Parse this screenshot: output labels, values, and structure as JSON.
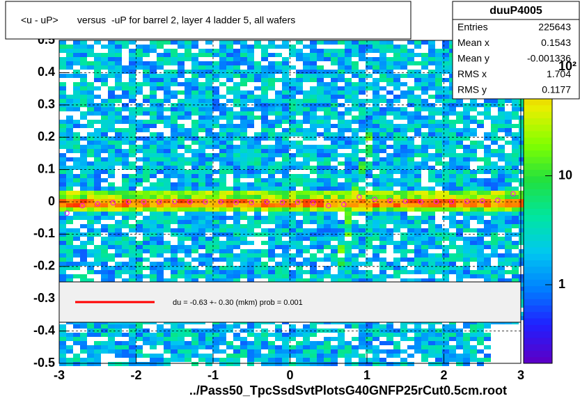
{
  "chart_data": {
    "type": "heatmap",
    "title": "<u - uP>       versus  -uP for barrel 2, layer 4 ladder 5, all wafers",
    "x_label": "../Pass50_TpcSsdSvtPlotsG40GNFP25rCut0.5cm.root",
    "xlim": [
      -3,
      3
    ],
    "xticks": [
      -3,
      -2,
      -1,
      0,
      1,
      2,
      3
    ],
    "ylim": [
      -0.5,
      0.5
    ],
    "yticks": [
      -0.5,
      -0.4,
      -0.3,
      -0.2,
      -0.1,
      0,
      0.1,
      0.2,
      0.3,
      0.4,
      0.5
    ],
    "grid": true,
    "zlog": true,
    "zlim": [
      0.19,
      175
    ],
    "zticks": [
      1,
      10,
      {
        "value": 100,
        "label": "10²"
      }
    ],
    "profile": {
      "color": "#ff00ff",
      "x": [
        -2.9,
        -2.7,
        -2.5,
        -2.3,
        -2.1,
        -1.9,
        -1.7,
        -1.5,
        -1.3,
        -1.1,
        -0.9,
        -0.7,
        -0.5,
        -0.3,
        -0.1,
        0.1,
        0.3,
        0.5,
        0.7,
        0.9,
        1.1,
        1.3,
        1.5,
        1.7,
        1.9,
        2.1,
        2.3,
        2.5,
        2.7,
        2.9
      ],
      "values": [
        -0.035,
        -0.012,
        -0.006,
        -0.003,
        0,
        0,
        0,
        0.001,
        0,
        0,
        0,
        -0.002,
        -0.002,
        0,
        -0.002,
        -0.001,
        -0.003,
        -0.012,
        -0.008,
        0.015,
        0.008,
        0.004,
        0.002,
        0,
        0.001,
        0.001,
        0.002,
        0.003,
        0.005,
        0.025
      ]
    },
    "fit": {
      "color": "#ff0000",
      "label": "du =   -0.63 +-  0.30 (mkm) prob = 0.001"
    },
    "stats": {
      "title": "duuP4005",
      "rows": [
        {
          "label": "Entries",
          "value": "225643"
        },
        {
          "label": "Mean x",
          "value": "0.1543"
        },
        {
          "label": "Mean y",
          "value": "-0.001336"
        },
        {
          "label": "RMS x",
          "value": "1.704"
        },
        {
          "label": "RMS y",
          "value": "0.1177"
        }
      ]
    }
  }
}
